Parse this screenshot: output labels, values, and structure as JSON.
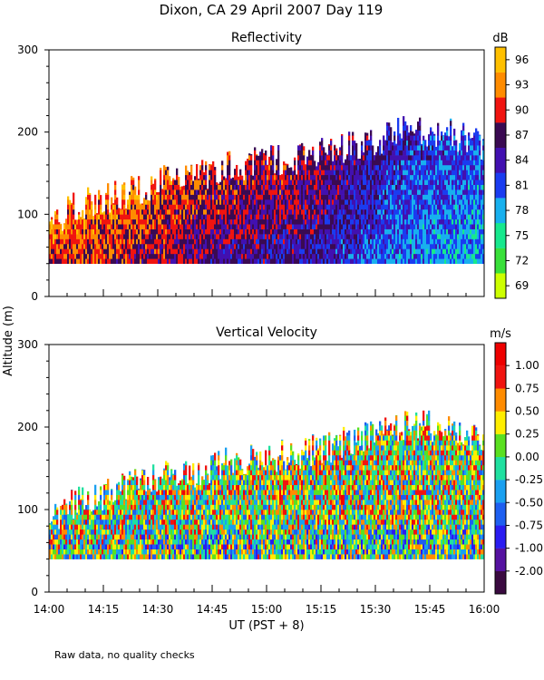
{
  "title": "Dixon, CA 29 April 2007  Day 119",
  "footnote": "Raw data, no quality checks",
  "ylabel": "Altitude (m)",
  "xlabel": "UT  (PST + 8)",
  "chart_data": [
    {
      "type": "heatmap",
      "title": "Reflectivity",
      "units": "dB",
      "x_categories": [
        "14:00",
        "14:15",
        "14:30",
        "14:45",
        "15:00",
        "15:15",
        "15:30",
        "15:45",
        "16:00"
      ],
      "x_range_minutes": [
        0,
        120
      ],
      "ylim": [
        0,
        300
      ],
      "yticks": [
        0,
        100,
        200,
        300
      ],
      "colorbar_ticks": [
        "69",
        "72",
        "75",
        "78",
        "81",
        "84",
        "87",
        "90",
        "93",
        "96"
      ],
      "colorbar_colors": [
        "#cdff00",
        "#39e03a",
        "#17e88d",
        "#18b0ee",
        "#1a3cf0",
        "#4210b0",
        "#3a0a52",
        "#f01410",
        "#ff8c00",
        "#ffc000"
      ],
      "colorbar_range": [
        67.5,
        97.5
      ],
      "data_bottom_m": 40,
      "top_profile_m": [
        {
          "t": 0,
          "h": 80
        },
        {
          "t": 5,
          "h": 100
        },
        {
          "t": 10,
          "h": 110
        },
        {
          "t": 20,
          "h": 120
        },
        {
          "t": 30,
          "h": 135
        },
        {
          "t": 40,
          "h": 140
        },
        {
          "t": 50,
          "h": 155
        },
        {
          "t": 60,
          "h": 160
        },
        {
          "t": 70,
          "h": 165
        },
        {
          "t": 80,
          "h": 175
        },
        {
          "t": 90,
          "h": 185
        },
        {
          "t": 100,
          "h": 200
        },
        {
          "t": 110,
          "h": 195
        },
        {
          "t": 120,
          "h": 180
        }
      ],
      "dominant_level_profile": [
        {
          "t": 0,
          "v": 90.5
        },
        {
          "t": 15,
          "v": 90
        },
        {
          "t": 30,
          "v": 89
        },
        {
          "t": 45,
          "v": 87
        },
        {
          "t": 60,
          "v": 86
        },
        {
          "t": 75,
          "v": 85
        },
        {
          "t": 90,
          "v": 82
        },
        {
          "t": 105,
          "v": 80
        },
        {
          "t": 120,
          "v": 79
        }
      ]
    },
    {
      "type": "heatmap",
      "title": "Vertical Velocity",
      "units": "m/s",
      "x_categories": [
        "14:00",
        "14:15",
        "14:30",
        "14:45",
        "15:00",
        "15:15",
        "15:30",
        "15:45",
        "16:00"
      ],
      "x_range_minutes": [
        0,
        120
      ],
      "ylim": [
        0,
        300
      ],
      "yticks": [
        0,
        100,
        200,
        300
      ],
      "colorbar_ticks": [
        "-2.00",
        "-1.00",
        "-0.75",
        "-0.50",
        "-0.25",
        "0.00",
        "0.25",
        "0.50",
        "0.75",
        "1.00"
      ],
      "colorbar_colors": [
        "#3a0a40",
        "#5512a0",
        "#2a1cf0",
        "#1e5ff0",
        "#1aa0f0",
        "#20e0a0",
        "#5ae020",
        "#ffee00",
        "#ff8c00",
        "#f01410",
        "#ee0000"
      ],
      "colorbar_range": [
        -2.25,
        1.25
      ],
      "data_bottom_m": 40,
      "top_profile_m": [
        {
          "t": 0,
          "h": 80
        },
        {
          "t": 5,
          "h": 100
        },
        {
          "t": 10,
          "h": 110
        },
        {
          "t": 20,
          "h": 120
        },
        {
          "t": 30,
          "h": 135
        },
        {
          "t": 40,
          "h": 140
        },
        {
          "t": 50,
          "h": 155
        },
        {
          "t": 60,
          "h": 160
        },
        {
          "t": 70,
          "h": 165
        },
        {
          "t": 80,
          "h": 175
        },
        {
          "t": 90,
          "h": 185
        },
        {
          "t": 100,
          "h": 200
        },
        {
          "t": 110,
          "h": 195
        },
        {
          "t": 120,
          "h": 180
        }
      ]
    }
  ]
}
